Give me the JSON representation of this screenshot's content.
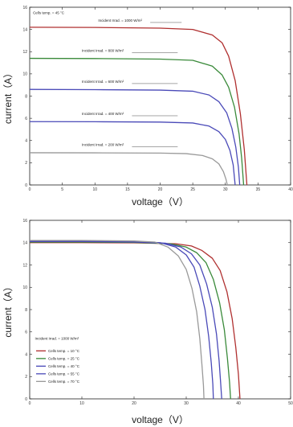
{
  "chart_data": [
    {
      "type": "line",
      "xlabel": "voltage（V）",
      "ylabel": "current（A）",
      "xlim": [
        0,
        40
      ],
      "ylim": [
        0,
        16
      ],
      "xticks": [
        0,
        5,
        10,
        15,
        20,
        25,
        30,
        35,
        40
      ],
      "yticks": [
        0,
        2,
        4,
        6,
        8,
        10,
        12,
        14,
        16
      ],
      "grid": false,
      "annotations": [
        {
          "text": "Cells temp. = 45 °C",
          "x": 0.5,
          "y": 15.4
        },
        {
          "text": "Incident Irrad. = 1000 W/m²",
          "x": 10.5,
          "y": 14.7,
          "leader_to_x": 20.5
        },
        {
          "text": "Incident Irrad. = 800 W/m²",
          "x": 8.0,
          "y": 12.0,
          "leader_to_x": 20.0
        },
        {
          "text": "Incident Irrad. = 600 W/m²",
          "x": 8.0,
          "y": 9.2,
          "leader_to_x": 20.0
        },
        {
          "text": "Incident Irrad. = 400 W/m²",
          "x": 8.0,
          "y": 6.3,
          "leader_to_x": 20.0
        },
        {
          "text": "Incident Irrad. = 200 W/m²",
          "x": 8.0,
          "y": 3.5,
          "leader_to_x": 20.0
        }
      ],
      "series": [
        {
          "color": "#b03030",
          "isc": 14.2,
          "voc": 33.3,
          "knee": 29.5,
          "points": [
            [
              0,
              14.2
            ],
            [
              10,
              14.18
            ],
            [
              20,
              14.12
            ],
            [
              25,
              14.0
            ],
            [
              28,
              13.5
            ],
            [
              29.5,
              12.8
            ],
            [
              30.5,
              11.6
            ],
            [
              31.5,
              9.4
            ],
            [
              32.3,
              6.4
            ],
            [
              32.9,
              3.2
            ],
            [
              33.3,
              0
            ]
          ]
        },
        {
          "color": "#3a8a3a",
          "isc": 11.4,
          "voc": 32.8,
          "knee": 29.0,
          "points": [
            [
              0,
              11.4
            ],
            [
              10,
              11.38
            ],
            [
              20,
              11.33
            ],
            [
              25,
              11.22
            ],
            [
              28,
              10.7
            ],
            [
              29.5,
              9.9
            ],
            [
              30.5,
              8.8
            ],
            [
              31.4,
              7.0
            ],
            [
              32.1,
              4.6
            ],
            [
              32.5,
              2.4
            ],
            [
              32.8,
              0
            ]
          ]
        },
        {
          "color": "#4a4ab8",
          "isc": 8.6,
          "voc": 32.2,
          "knee": 28.5,
          "points": [
            [
              0,
              8.6
            ],
            [
              10,
              8.58
            ],
            [
              20,
              8.54
            ],
            [
              25,
              8.44
            ],
            [
              27.5,
              8.1
            ],
            [
              29,
              7.5
            ],
            [
              30.2,
              6.5
            ],
            [
              31,
              5.1
            ],
            [
              31.6,
              3.4
            ],
            [
              32,
              1.6
            ],
            [
              32.2,
              0
            ]
          ]
        },
        {
          "color": "#4a4ab8",
          "isc": 5.7,
          "voc": 31.5,
          "knee": 28.0,
          "points": [
            [
              0,
              5.7
            ],
            [
              10,
              5.69
            ],
            [
              20,
              5.66
            ],
            [
              25,
              5.58
            ],
            [
              27.5,
              5.3
            ],
            [
              29,
              4.8
            ],
            [
              30,
              4.1
            ],
            [
              30.7,
              3.1
            ],
            [
              31.2,
              1.8
            ],
            [
              31.5,
              0
            ]
          ]
        },
        {
          "color": "#999999",
          "isc": 2.9,
          "voc": 30.3,
          "knee": 27.0,
          "points": [
            [
              0,
              2.9
            ],
            [
              10,
              2.89
            ],
            [
              20,
              2.87
            ],
            [
              24,
              2.82
            ],
            [
              26.5,
              2.65
            ],
            [
              28,
              2.35
            ],
            [
              29,
              1.9
            ],
            [
              29.7,
              1.2
            ],
            [
              30.1,
              0.5
            ],
            [
              30.3,
              0
            ]
          ]
        }
      ]
    },
    {
      "type": "line",
      "xlabel": "voltage（V）",
      "ylabel": "current（A）",
      "xlim": [
        0,
        50
      ],
      "ylim": [
        0,
        16
      ],
      "xticks": [
        0,
        10,
        20,
        30,
        40,
        50
      ],
      "yticks": [
        0,
        2,
        4,
        6,
        8,
        10,
        12,
        14,
        16
      ],
      "grid": false,
      "annotations": [
        {
          "text": "Incident Irrad. = 1000 W/m²",
          "x": 1.0,
          "y": 5.3
        }
      ],
      "legend": {
        "placement": "bottom-left"
      },
      "series": [
        {
          "name": "Cells temp. = 10 °C",
          "color": "#b03030",
          "points": [
            [
              0,
              14.0
            ],
            [
              10,
              14.0
            ],
            [
              20,
              13.98
            ],
            [
              28,
              13.9
            ],
            [
              31,
              13.7
            ],
            [
              33,
              13.3
            ],
            [
              35,
              12.6
            ],
            [
              36.5,
              11.5
            ],
            [
              37.8,
              9.6
            ],
            [
              38.8,
              7.2
            ],
            [
              39.5,
              4.6
            ],
            [
              40,
              2.2
            ],
            [
              40.3,
              0
            ]
          ]
        },
        {
          "name": "Cells temp. = 25 °C",
          "color": "#3a8a3a",
          "points": [
            [
              0,
              14.05
            ],
            [
              10,
              14.05
            ],
            [
              20,
              14.02
            ],
            [
              27,
              13.9
            ],
            [
              30,
              13.6
            ],
            [
              32,
              13.1
            ],
            [
              33.8,
              12.2
            ],
            [
              35.2,
              10.7
            ],
            [
              36.4,
              8.6
            ],
            [
              37.3,
              6.2
            ],
            [
              37.9,
              3.6
            ],
            [
              38.3,
              1.5
            ],
            [
              38.5,
              0
            ]
          ]
        },
        {
          "name": "Cells temp. = 40 °C",
          "color": "#4a4ab8",
          "points": [
            [
              0,
              14.1
            ],
            [
              10,
              14.1
            ],
            [
              20,
              14.06
            ],
            [
              26,
              13.95
            ],
            [
              29,
              13.6
            ],
            [
              31,
              13.0
            ],
            [
              32.6,
              12.0
            ],
            [
              33.9,
              10.3
            ],
            [
              35,
              8.2
            ],
            [
              35.8,
              5.8
            ],
            [
              36.3,
              3.4
            ],
            [
              36.6,
              1.4
            ],
            [
              36.8,
              0
            ]
          ]
        },
        {
          "name": "Cells temp. = 55 °C",
          "color": "#4a4ab8",
          "points": [
            [
              0,
              14.15
            ],
            [
              10,
              14.15
            ],
            [
              20,
              14.1
            ],
            [
              25,
              14.0
            ],
            [
              28,
              13.6
            ],
            [
              30,
              12.9
            ],
            [
              31.5,
              11.8
            ],
            [
              32.6,
              10.1
            ],
            [
              33.6,
              8.0
            ],
            [
              34.3,
              5.6
            ],
            [
              34.8,
              3.2
            ],
            [
              35.1,
              1.3
            ],
            [
              35.2,
              0
            ]
          ]
        },
        {
          "name": "Cells temp. = 70 °C",
          "color": "#999999",
          "points": [
            [
              0,
              14.2
            ],
            [
              10,
              14.2
            ],
            [
              20,
              14.15
            ],
            [
              24,
              14.05
            ],
            [
              26.5,
              13.6
            ],
            [
              28.5,
              12.8
            ],
            [
              30,
              11.6
            ],
            [
              31.1,
              9.9
            ],
            [
              32,
              7.8
            ],
            [
              32.6,
              5.4
            ],
            [
              33,
              3.1
            ],
            [
              33.3,
              1.2
            ],
            [
              33.4,
              0
            ]
          ]
        }
      ]
    }
  ]
}
